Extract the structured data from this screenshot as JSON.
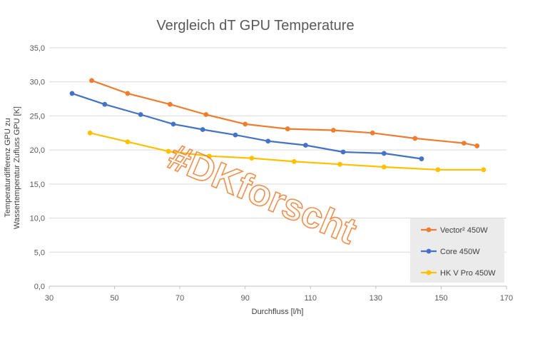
{
  "chart_data": {
    "type": "line",
    "title": "Vergleich dT GPU Temperature",
    "xlabel": "Durchfluss [l/h]",
    "ylabel_lines": [
      "Temperaturdifferenz GPU zu",
      "Wassertemperatur Zufluss GPU  [K]"
    ],
    "xlim": [
      30,
      170
    ],
    "ylim": [
      0,
      35
    ],
    "x_ticks": [
      30,
      50,
      70,
      90,
      110,
      130,
      150,
      170
    ],
    "y_ticks": [
      0,
      5,
      10,
      15,
      20,
      25,
      30,
      35
    ],
    "x_tick_labels": [
      "30",
      "50",
      "70",
      "90",
      "110",
      "130",
      "150",
      "170"
    ],
    "y_tick_labels": [
      "0,0",
      "5,0",
      "10,0",
      "15,0",
      "20,0",
      "25,0",
      "30,0",
      "35,0"
    ],
    "grid": "horizontal",
    "legend_position": "bottom-right",
    "watermark": "#DKforscht",
    "series": [
      {
        "name": "Vector² 450W",
        "color": "#ed7d31",
        "x": [
          43,
          54,
          67,
          78,
          90,
          103,
          117,
          129,
          142,
          157,
          161
        ],
        "y": [
          30.2,
          28.3,
          26.7,
          25.2,
          23.8,
          23.1,
          22.9,
          22.5,
          21.7,
          21.0,
          20.6
        ]
      },
      {
        "name": "Core 450W",
        "color": "#4472c4",
        "x": [
          37,
          47,
          58,
          68,
          77,
          87,
          97,
          108.5,
          120,
          132.5,
          144
        ],
        "y": [
          28.3,
          26.7,
          25.2,
          23.8,
          23.0,
          22.2,
          21.3,
          20.7,
          19.7,
          19.5,
          18.7
        ]
      },
      {
        "name": "HK V Pro 450W",
        "color": "#ffc000",
        "x": [
          42.5,
          54,
          66.5,
          79,
          92,
          105,
          119,
          132.5,
          149,
          163
        ],
        "y": [
          22.5,
          21.2,
          19.8,
          19.1,
          18.8,
          18.3,
          17.9,
          17.5,
          17.1,
          17.1
        ]
      }
    ]
  }
}
